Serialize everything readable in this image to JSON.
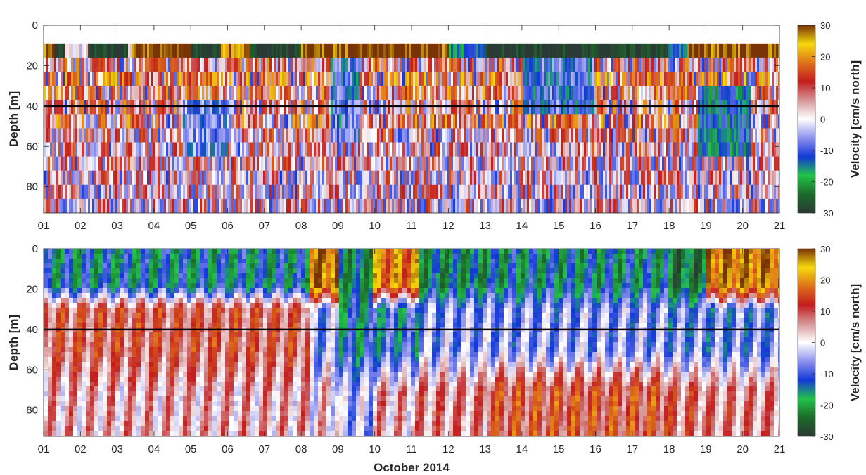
{
  "chart_data": [
    {
      "type": "heatmap",
      "panel": "top",
      "xlabel": "",
      "ylabel": "Depth [m]",
      "colorbar_label": "Velocity [cm/s north]",
      "x_ticks": [
        "01",
        "02",
        "03",
        "04",
        "05",
        "06",
        "07",
        "08",
        "09",
        "10",
        "11",
        "12",
        "13",
        "14",
        "15",
        "16",
        "17",
        "18",
        "19",
        "20",
        "21"
      ],
      "xlim": [
        1,
        21
      ],
      "y_ticks": [
        "0",
        "20",
        "40",
        "60",
        "80"
      ],
      "ylim": [
        0,
        93
      ],
      "y_reversed": true,
      "colorbar_ticks": [
        "30",
        "20",
        "10",
        "0",
        "-10",
        "-20",
        "-30"
      ],
      "clim": [
        -30,
        30
      ],
      "reference_line_depth": 40,
      "near_surface_bin": {
        "depth_range": [
          9,
          16
        ],
        "day_segments": [
          {
            "x": [
              1.0,
              1.3
            ],
            "velocity": 30
          },
          {
            "x": [
              1.3,
              1.6
            ],
            "velocity": -30
          },
          {
            "x": [
              2.2,
              3.3
            ],
            "velocity": -30
          },
          {
            "x": [
              3.4,
              5.0
            ],
            "velocity": 30
          },
          {
            "x": [
              5.0,
              5.8
            ],
            "velocity": -30
          },
          {
            "x": [
              5.8,
              6.6
            ],
            "velocity": 25
          },
          {
            "x": [
              6.6,
              7.3
            ],
            "velocity": -30
          },
          {
            "x": [
              7.3,
              8.0
            ],
            "velocity": -30
          },
          {
            "x": [
              8.0,
              9.5
            ],
            "velocity": 30
          },
          {
            "x": [
              9.5,
              12.0
            ],
            "velocity": 30
          },
          {
            "x": [
              12.0,
              13.0
            ],
            "velocity": -15
          },
          {
            "x": [
              13.0,
              17.0
            ],
            "velocity": -30
          },
          {
            "x": [
              17.0,
              18.0
            ],
            "velocity": -30
          },
          {
            "x": [
              18.0,
              18.5
            ],
            "velocity": -15
          },
          {
            "x": [
              18.5,
              21.0
            ],
            "velocity": 30
          }
        ]
      },
      "depth_bands": [
        {
          "depth": [
            16,
            23
          ],
          "dominant_velocity": 8
        },
        {
          "depth": [
            23,
            30
          ],
          "dominant_velocity": 12
        },
        {
          "depth": [
            30,
            37
          ],
          "dominant_velocity": 10
        },
        {
          "depth": [
            37,
            44
          ],
          "dominant_velocity": 8
        },
        {
          "depth": [
            44,
            51
          ],
          "dominant_velocity": 10
        },
        {
          "depth": [
            51,
            58
          ],
          "dominant_velocity": 6
        },
        {
          "depth": [
            58,
            65
          ],
          "dominant_velocity": 4
        },
        {
          "depth": [
            65,
            72
          ],
          "dominant_velocity": 4
        },
        {
          "depth": [
            72,
            79
          ],
          "dominant_velocity": 3
        },
        {
          "depth": [
            79,
            86
          ],
          "dominant_velocity": 3
        },
        {
          "depth": [
            86,
            93
          ],
          "dominant_velocity": 2
        }
      ],
      "negative_episodes": [
        {
          "x": [
            14.0,
            16.0
          ],
          "depth": [
            16,
            40
          ],
          "velocity": -10
        },
        {
          "x": [
            8.8,
            9.6
          ],
          "depth": [
            16,
            55
          ],
          "velocity": -10
        },
        {
          "x": [
            18.8,
            20.2
          ],
          "depth": [
            30,
            60
          ],
          "velocity": -15
        },
        {
          "x": [
            4.8,
            6.0
          ],
          "depth": [
            37,
            58
          ],
          "velocity": -8
        }
      ]
    },
    {
      "type": "heatmap",
      "panel": "bottom",
      "xlabel": "October 2014",
      "ylabel": "Depth [m]",
      "colorbar_label": "Velocity [cm/s north]",
      "x_ticks": [
        "01",
        "02",
        "03",
        "04",
        "05",
        "06",
        "07",
        "08",
        "09",
        "10",
        "11",
        "12",
        "13",
        "14",
        "15",
        "16",
        "17",
        "18",
        "19",
        "20",
        "21"
      ],
      "xlim": [
        1,
        21
      ],
      "y_ticks": [
        "0",
        "20",
        "40",
        "60",
        "80"
      ],
      "ylim": [
        0,
        93
      ],
      "y_reversed": true,
      "colorbar_ticks": [
        "30",
        "20",
        "10",
        "0",
        "-10",
        "-20",
        "-30"
      ],
      "clim": [
        -30,
        30
      ],
      "reference_line_depth": 40,
      "regimes": [
        {
          "x": [
            1.0,
            8.2
          ],
          "surface_velocity": -15,
          "interior_velocity": 10,
          "deep_velocity": 4
        },
        {
          "x": [
            8.2,
            9.0
          ],
          "surface_velocity": 25,
          "interior_velocity": -6,
          "deep_velocity": 2
        },
        {
          "x": [
            9.0,
            10.0
          ],
          "surface_velocity": -18,
          "interior_velocity": -14,
          "deep_velocity": -4
        },
        {
          "x": [
            10.0,
            11.2
          ],
          "surface_velocity": 20,
          "interior_velocity": -12,
          "deep_velocity": 4
        },
        {
          "x": [
            11.2,
            13.0
          ],
          "surface_velocity": -18,
          "interior_velocity": -6,
          "deep_velocity": 6
        },
        {
          "x": [
            13.0,
            18.0
          ],
          "surface_velocity": -16,
          "interior_velocity": -6,
          "deep_velocity": 12
        },
        {
          "x": [
            18.0,
            19.0
          ],
          "surface_velocity": -22,
          "interior_velocity": -8,
          "deep_velocity": 8
        },
        {
          "x": [
            19.0,
            21.0
          ],
          "surface_velocity": 24,
          "interior_velocity": -8,
          "deep_velocity": 6
        }
      ]
    }
  ]
}
